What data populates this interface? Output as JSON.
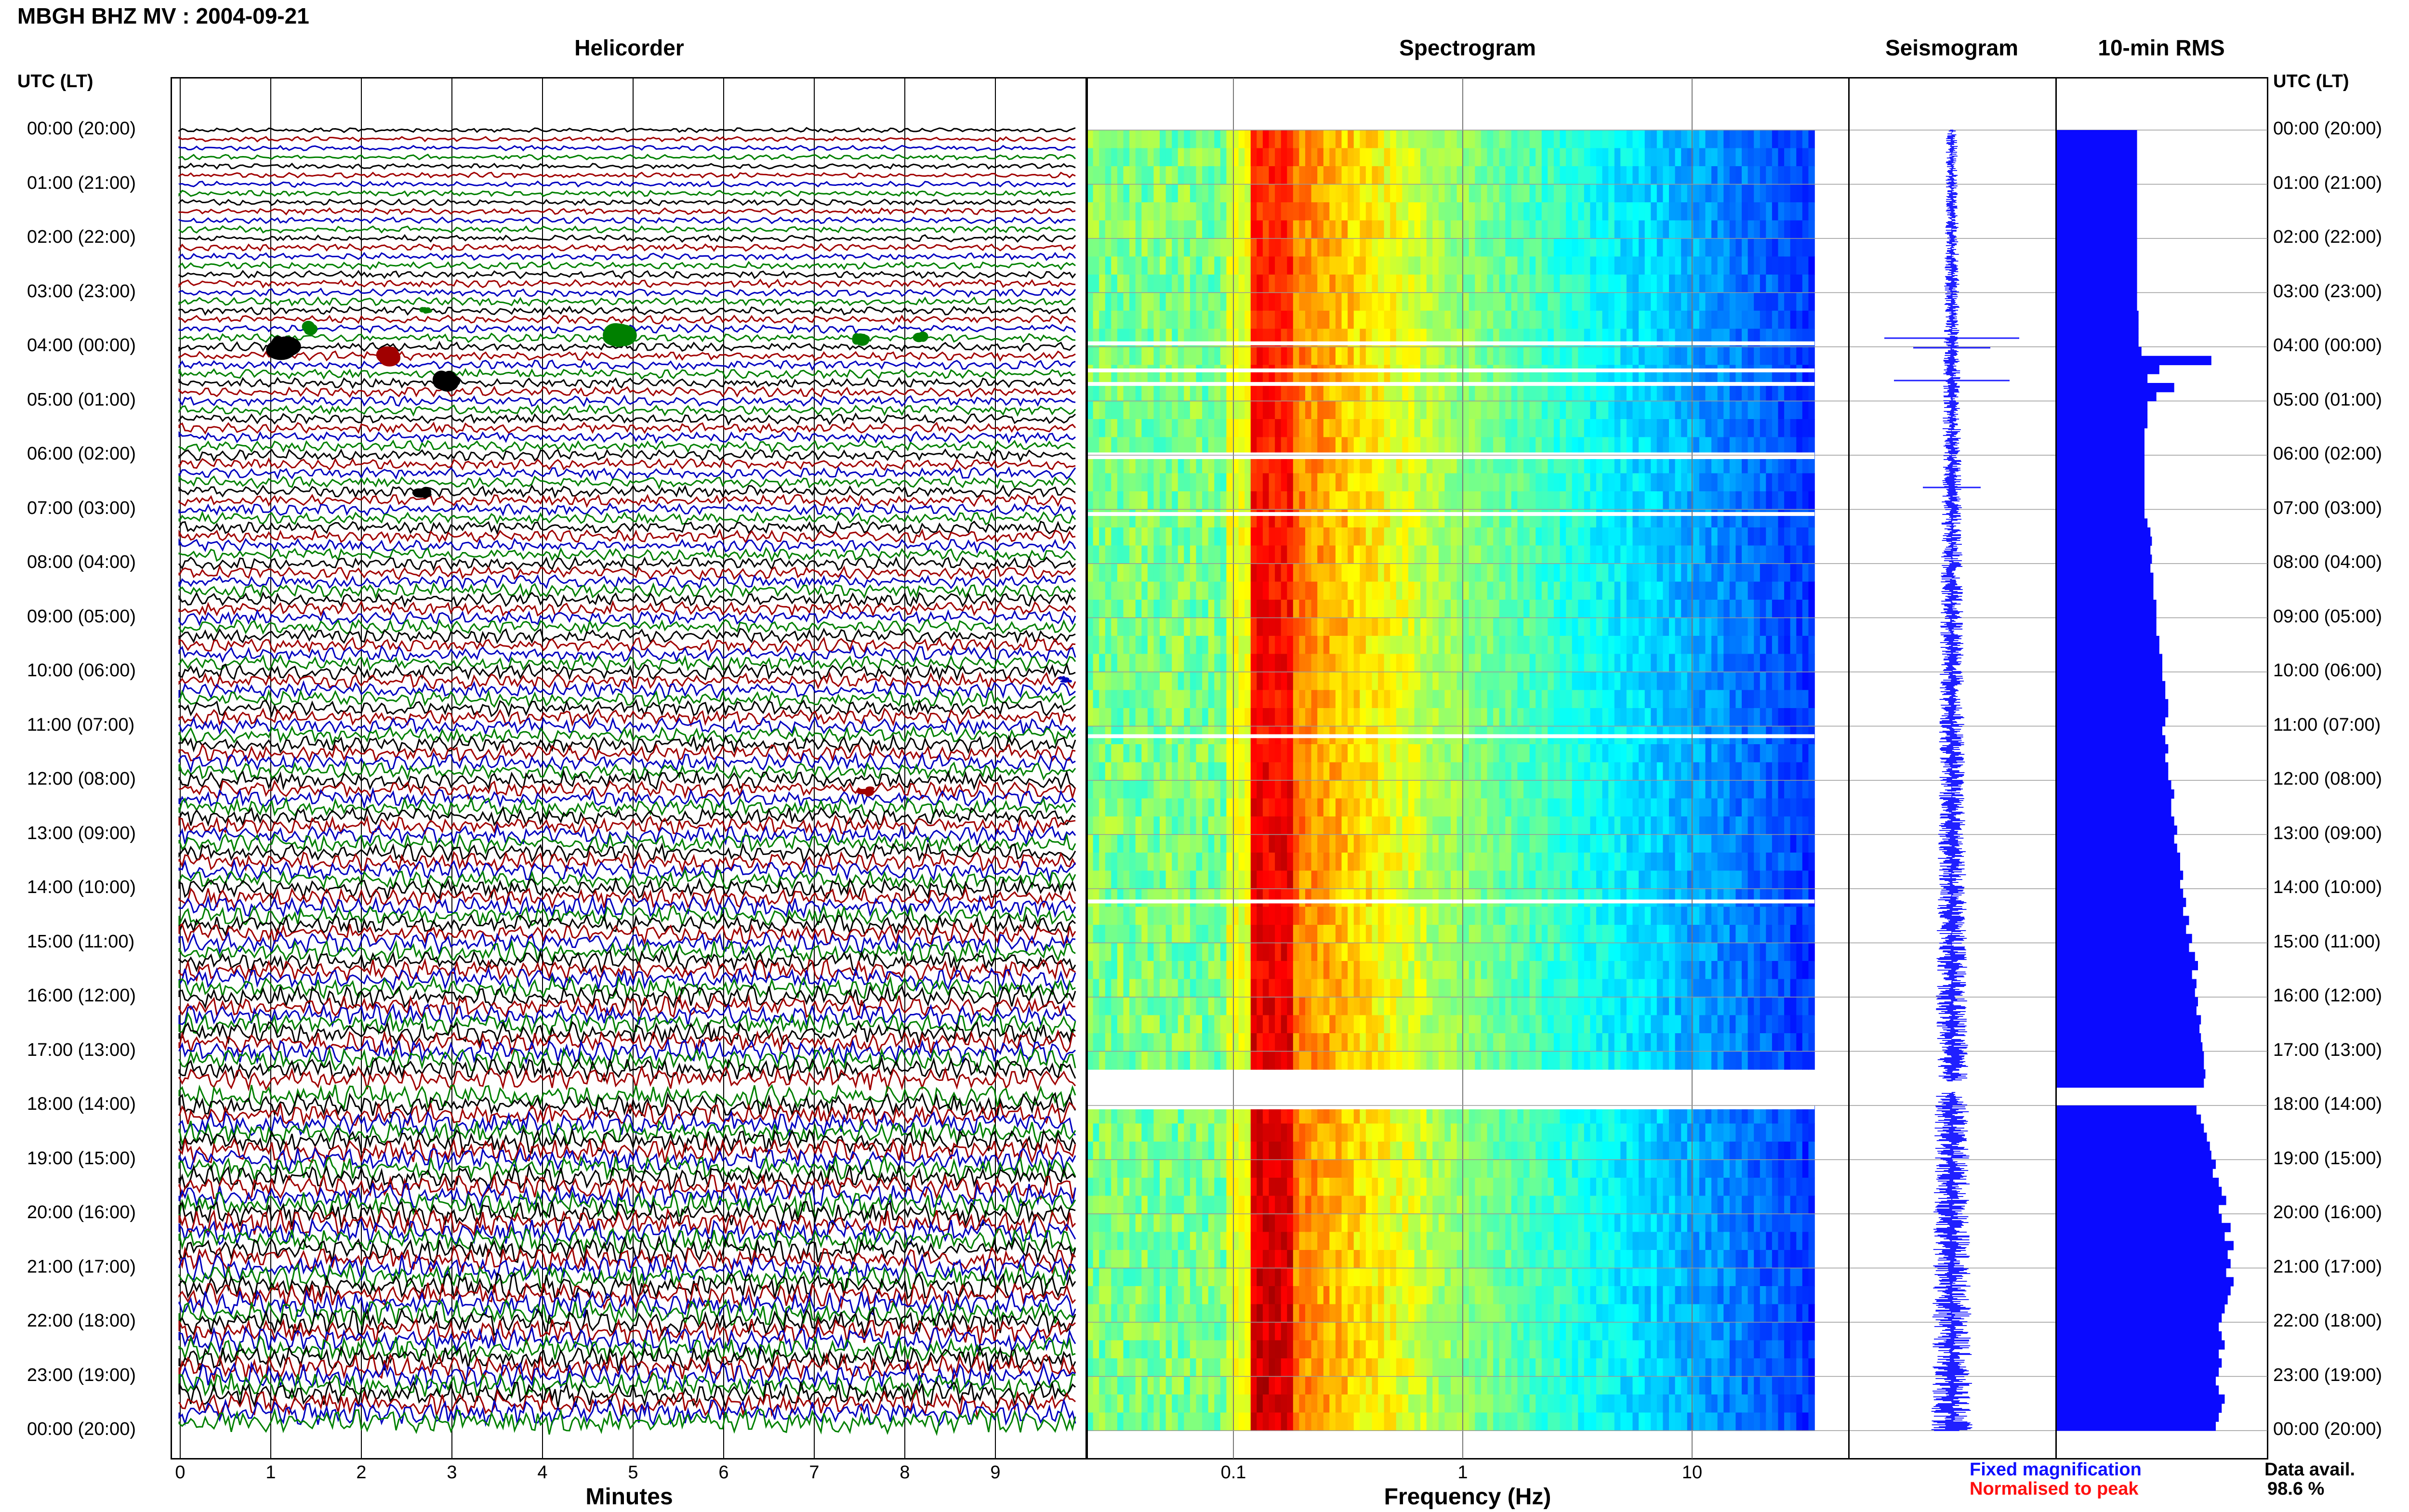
{
  "header": {
    "station": "MBGH BHZ MV : 2004-09-21",
    "utc_label_left": "UTC (LT)",
    "utc_label_right": "UTC (LT)"
  },
  "panels": {
    "helicorder": "Helicorder",
    "spectrogram": "Spectrogram",
    "seismogram": "Seismogram",
    "rms": "10-min RMS"
  },
  "axes": {
    "helicorder_xlabel": "Minutes",
    "spectrogram_xlabel": "Frequency (Hz)",
    "minute_ticks": [
      "0",
      "1",
      "2",
      "3",
      "4",
      "5",
      "6",
      "7",
      "8",
      "9"
    ],
    "freq_ticks": [
      "0.1",
      "1",
      "10"
    ]
  },
  "legend": {
    "fixed": "Fixed magnification",
    "normalised": "Normalised to peak",
    "data_avail_label": "Data avail.",
    "data_avail_value": "98.6 %"
  },
  "colors": {
    "trace_black": "#000000",
    "trace_red": "#a00000",
    "trace_blue": "#0000c0",
    "trace_green": "#008000",
    "rms_bar": "#0a0aff",
    "seismo": "#2020ff",
    "gap": "#ffffff"
  },
  "time_labels": [
    "00:00 (20:00)",
    "01:00 (21:00)",
    "02:00 (22:00)",
    "03:00 (23:00)",
    "04:00 (00:00)",
    "05:00 (01:00)",
    "06:00 (02:00)",
    "07:00 (03:00)",
    "08:00 (04:00)",
    "09:00 (05:00)",
    "10:00 (06:00)",
    "11:00 (07:00)",
    "12:00 (08:00)",
    "13:00 (09:00)",
    "14:00 (10:00)",
    "15:00 (11:00)",
    "16:00 (12:00)",
    "17:00 (13:00)",
    "18:00 (14:00)",
    "19:00 (15:00)",
    "20:00 (16:00)",
    "21:00 (17:00)",
    "22:00 (18:00)",
    "23:00 (19:00)",
    "00:00 (20:00)"
  ],
  "chart_data": {
    "type": "heatmap",
    "title": "MBGH BHZ MV : 2004-09-21",
    "rows": 144,
    "row_duration_min": 10,
    "data_gap_hours": [
      17.55,
      17.75
    ],
    "spectrogram_gap_rows_hours": [
      3.9,
      4.4,
      4.65,
      5.95,
      6.0,
      7.05,
      11.15,
      14.2,
      18.0
    ],
    "freq_range_hz": [
      0.02,
      40
    ],
    "freq_scale": "log",
    "rms_10min_relative": [
      0.55,
      0.55,
      0.55,
      0.55,
      0.55,
      0.55,
      0.55,
      0.55,
      0.55,
      0.55,
      0.55,
      0.55,
      0.55,
      0.55,
      0.55,
      0.55,
      0.55,
      0.55,
      0.55,
      0.55,
      0.56,
      0.56,
      0.56,
      0.56,
      0.58,
      1.05,
      0.7,
      0.62,
      0.8,
      0.68,
      0.62,
      0.62,
      0.62,
      0.6,
      0.6,
      0.6,
      0.6,
      0.6,
      0.6,
      0.6,
      0.6,
      0.6,
      0.6,
      0.62,
      0.64,
      0.65,
      0.64,
      0.65,
      0.64,
      0.66,
      0.66,
      0.66,
      0.68,
      0.68,
      0.68,
      0.68,
      0.7,
      0.7,
      0.72,
      0.72,
      0.72,
      0.74,
      0.74,
      0.76,
      0.76,
      0.74,
      0.72,
      0.74,
      0.76,
      0.74,
      0.76,
      0.76,
      0.78,
      0.8,
      0.78,
      0.78,
      0.8,
      0.82,
      0.8,
      0.82,
      0.84,
      0.84,
      0.86,
      0.84,
      0.86,
      0.88,
      0.86,
      0.9,
      0.88,
      0.92,
      0.9,
      0.94,
      0.96,
      0.92,
      0.95,
      0.94,
      0.96,
      0.95,
      0.98,
      0.97,
      0.98,
      0.99,
      1.0,
      1.0,
      1.01,
      1.0,
      0.0,
      0.0,
      0.95,
      0.98,
      1.0,
      1.02,
      1.04,
      1.05,
      1.08,
      1.06,
      1.1,
      1.12,
      1.15,
      1.1,
      1.12,
      1.18,
      1.14,
      1.2,
      1.16,
      1.18,
      1.15,
      1.2,
      1.18,
      1.16,
      1.14,
      1.12,
      1.1,
      1.12,
      1.14,
      1.1,
      1.12,
      1.1,
      1.08,
      1.1,
      1.14,
      1.12,
      1.1,
      1.08
    ]
  }
}
